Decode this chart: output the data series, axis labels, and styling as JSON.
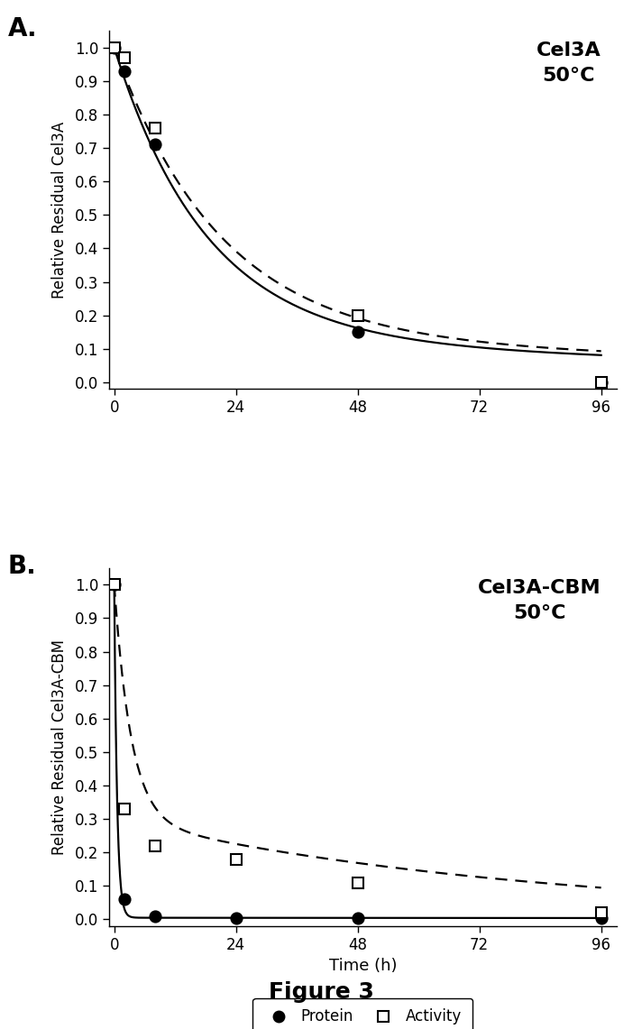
{
  "panel_A": {
    "title": "Cel3A\n50°C",
    "ylabel": "Relative Residual Cel3A",
    "protein_data": {
      "x": [
        0,
        2,
        8,
        48,
        96
      ],
      "y": [
        1.0,
        0.93,
        0.71,
        0.15,
        0.0
      ]
    },
    "activity_data": {
      "x": [
        0,
        2,
        8,
        48,
        96
      ],
      "y": [
        1.0,
        0.97,
        0.76,
        0.2,
        0.0
      ]
    },
    "prot_curve": [
      0.87,
      0.055,
      0.13,
      0.0055
    ],
    "act_curve": [
      0.87,
      0.048,
      0.13,
      0.0045
    ]
  },
  "panel_B": {
    "title": "Cel3A-CBM\n50°C",
    "ylabel": "Relative Residual Cel3A-CBM",
    "protein_data": {
      "x": [
        0,
        2,
        8,
        24,
        48,
        96
      ],
      "y": [
        1.0,
        0.06,
        0.01,
        0.005,
        0.005,
        0.005
      ]
    },
    "activity_data": {
      "x": [
        0,
        2,
        8,
        24,
        48,
        96
      ],
      "y": [
        1.0,
        0.33,
        0.22,
        0.18,
        0.11,
        0.02
      ]
    },
    "prot_curve": [
      0.995,
      1.8,
      0.005,
      0.002
    ],
    "act_curve": [
      0.7,
      0.3,
      0.3,
      0.012
    ]
  },
  "xlabel": "Time (h)",
  "xticks": [
    0,
    24,
    48,
    72,
    96
  ],
  "yticks": [
    0.0,
    0.1,
    0.2,
    0.3,
    0.4,
    0.5,
    0.6,
    0.7,
    0.8,
    0.9,
    1.0
  ],
  "ylim": [
    -0.02,
    1.05
  ],
  "xlim": [
    -1,
    99
  ],
  "legend_label_protein": "Protein",
  "legend_label_activity": "Activity",
  "figure_label": "Figure 3",
  "bg_color": "#ffffff"
}
